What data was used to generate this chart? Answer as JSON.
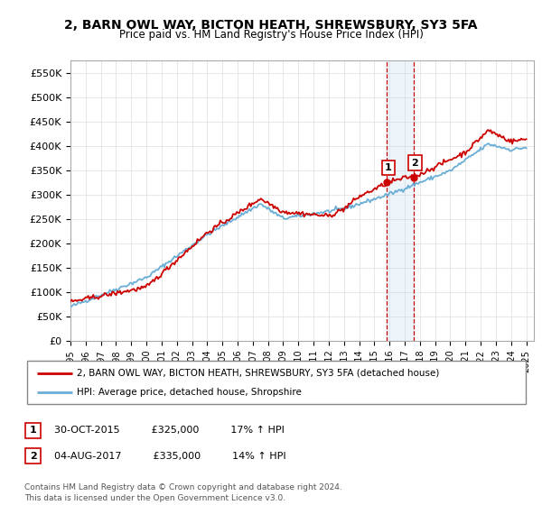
{
  "title": "2, BARN OWL WAY, BICTON HEATH, SHREWSBURY, SY3 5FA",
  "subtitle": "Price paid vs. HM Land Registry's House Price Index (HPI)",
  "ylabel_ticks": [
    "£0",
    "£50K",
    "£100K",
    "£150K",
    "£200K",
    "£250K",
    "£300K",
    "£350K",
    "£400K",
    "£450K",
    "£500K",
    "£550K"
  ],
  "ytick_values": [
    0,
    50000,
    100000,
    150000,
    200000,
    250000,
    300000,
    350000,
    400000,
    450000,
    500000,
    550000
  ],
  "ylim": [
    0,
    575000
  ],
  "hpi_color": "#6baed6",
  "price_color": "#cc0000",
  "shade_color": "#c6dbef",
  "vline_color": "#cc0000",
  "marker_color": "#cc0000",
  "sale1": {
    "date_x": 2015.83,
    "price": 325000,
    "label": "1"
  },
  "sale2": {
    "date_x": 2017.58,
    "price": 335000,
    "label": "2"
  },
  "legend_line1": "2, BARN OWL WAY, BICTON HEATH, SHREWSBURY, SY3 5FA (detached house)",
  "legend_line2": "HPI: Average price, detached house, Shropshire",
  "table_rows": [
    [
      "1",
      "30-OCT-2015",
      "£325,000",
      "17% ↑ HPI"
    ],
    [
      "2",
      "04-AUG-2017",
      "£335,000",
      "14% ↑ HPI"
    ]
  ],
  "footer": "Contains HM Land Registry data © Crown copyright and database right 2024.\nThis data is licensed under the Open Government Licence v3.0.",
  "xmin": 1995.0,
  "xmax": 2025.5
}
